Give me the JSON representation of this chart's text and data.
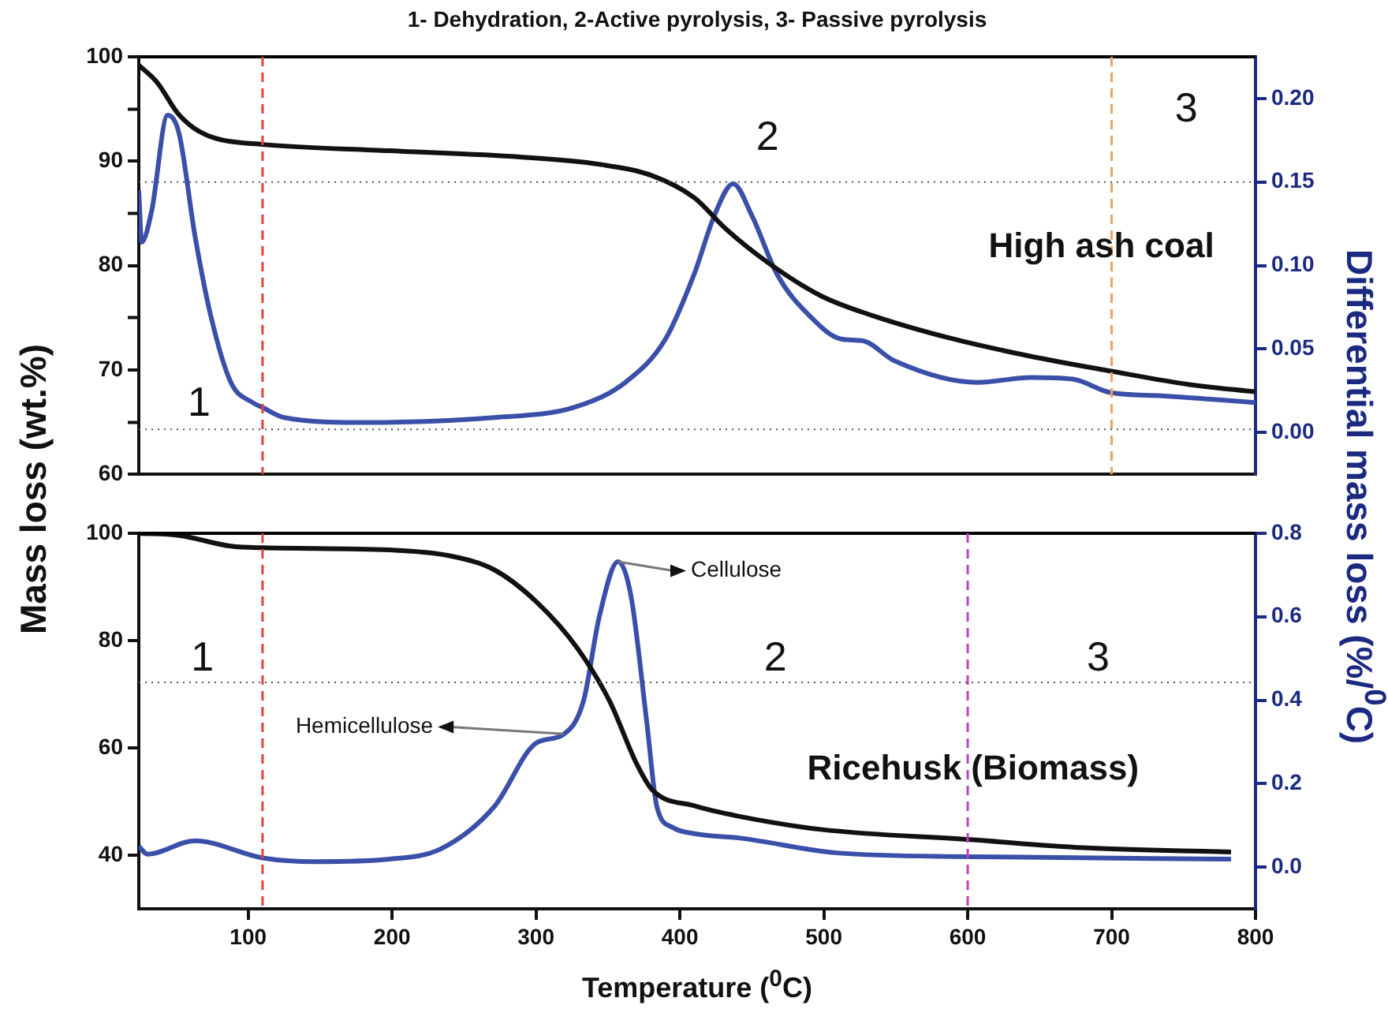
{
  "chart_data": [
    {
      "type": "line",
      "title": "1- Dehydration, 2-Active pyrolysis, 3- Passive pyrolysis",
      "subtitle": "High ash coal",
      "ylabel": "Mass loss (wt.%)",
      "y2label": "Differential mass loss (%/$^{0}$C)",
      "tick_labels": "y",
      "xlim": [
        24,
        800
      ],
      "xticks": [
        100,
        200,
        300,
        400,
        500,
        600,
        700,
        800
      ],
      "ylim": [
        60,
        100
      ],
      "yticks": [
        60,
        {
          "value": 65,
          "label": null
        },
        70,
        {
          "value": 75,
          "label": null
        },
        80,
        {
          "value": 85,
          "label": null
        },
        90,
        {
          "value": 95,
          "label": null
        },
        100
      ],
      "y2lim": [
        -0.025,
        0.225
      ],
      "y2ticks": [
        {
          "value": 0,
          "label": "0.00"
        },
        {
          "value": 0.05,
          "label": "0.05"
        },
        {
          "value": 0.1,
          "label": "0.10"
        },
        {
          "value": 0.15,
          "label": "0.15"
        },
        {
          "value": 0.2,
          "label": "0.20"
        }
      ],
      "series": [
        {
          "color": "#111111",
          "x": [
            24,
            37,
            51,
            62,
            77,
            110,
            198,
            289,
            344,
            381,
            410,
            432,
            461,
            498,
            534,
            589,
            644,
            699,
            754,
            800
          ],
          "values": [
            99.2,
            97.5,
            94.6,
            93.2,
            92.2,
            91.6,
            91.0,
            90.4,
            89.7,
            88.6,
            86.5,
            83.5,
            80.3,
            77.1,
            75.2,
            73.0,
            71.3,
            69.9,
            68.6,
            67.9
          ]
        },
        {
          "color": "#3a4fa8",
          "axis": "y2",
          "x": [
            24,
            26,
            33,
            44,
            52,
            63,
            74,
            88,
            103,
            110,
            125,
            180,
            271,
            326,
            362,
            390,
            410,
            424,
            437,
            450,
            468,
            490,
            512,
            527,
            549,
            607,
            644,
            673,
            699,
            735,
            800
          ],
          "values": [
            0.145,
            0.114,
            0.133,
            0.19,
            0.179,
            0.118,
            0.07,
            0.03,
            0.018,
            0.015,
            0.009,
            0.006,
            0.009,
            0.015,
            0.03,
            0.056,
            0.095,
            0.13,
            0.149,
            0.13,
            0.094,
            0.07,
            0.056,
            0.055,
            0.043,
            0.03,
            0.033,
            0.032,
            0.024,
            0.022,
            0.018
          ]
        }
      ],
      "ref_lines": [
        {
          "axis": "x",
          "value": 110,
          "color": "#e8413c",
          "line_style": "dashed"
        },
        {
          "axis": "x",
          "value": 700,
          "color": "#f0a060",
          "line_style": "dashed"
        },
        {
          "axis": "y",
          "value": 64.3,
          "color": "#555555",
          "line_style": "dotted"
        },
        {
          "axis": "y2",
          "value": 0.15,
          "color": "#555555",
          "line_style": "dotted"
        }
      ],
      "annotations": [
        "1",
        "2",
        "3"
      ]
    },
    {
      "type": "line",
      "subtitle": "Ricehusk (Biomass)",
      "xlabel": "Temperature ($^{0}$C)",
      "xlim": [
        24,
        800
      ],
      "xticks": [
        100,
        200,
        300,
        400,
        500,
        600,
        700,
        800
      ],
      "ylim": [
        30,
        100
      ],
      "yticks": [
        40,
        60,
        80,
        100
      ],
      "y2lim": [
        -0.1,
        0.8
      ],
      "y2ticks": [
        {
          "value": 0,
          "label": "0.0"
        },
        {
          "value": 0.2,
          "label": "0.2"
        },
        {
          "value": 0.4,
          "label": "0.4"
        },
        {
          "value": 0.6,
          "label": "0.6"
        },
        {
          "value": 0.8,
          "label": "0.8"
        }
      ],
      "series": [
        {
          "color": "#111111",
          "x": [
            24,
            52,
            88,
            110,
            198,
            242,
            271,
            300,
            329,
            351,
            370,
            381,
            410,
            440,
            498,
            602,
            680,
            783
          ],
          "values": [
            100,
            99.6,
            97.6,
            97.3,
            96.9,
            95.7,
            93.2,
            87.3,
            78.5,
            68.8,
            57.0,
            52.1,
            49.2,
            47.3,
            44.8,
            42.9,
            41.4,
            40.6
          ]
        },
        {
          "color": "#3a4fa8",
          "axis": "y2",
          "x": [
            24,
            30,
            63,
            110,
            147,
            198,
            234,
            271,
            300,
            319,
            333,
            344,
            357,
            366,
            377,
            384,
            395,
            410,
            443,
            509,
            602,
            783
          ],
          "values": [
            0.05,
            0.031,
            0.063,
            0.022,
            0.013,
            0.019,
            0.044,
            0.145,
            0.297,
            0.318,
            0.398,
            0.6,
            0.732,
            0.65,
            0.347,
            0.145,
            0.095,
            0.08,
            0.069,
            0.034,
            0.025,
            0.019
          ]
        }
      ],
      "ref_lines": [
        {
          "axis": "x",
          "value": 110,
          "color": "#e8413c",
          "line_style": "dashed"
        },
        {
          "axis": "x",
          "value": 600,
          "color": "#c040c0",
          "line_style": "dashed"
        },
        {
          "axis": "y",
          "value": 72.2,
          "color": "#555555",
          "line_style": "dotted"
        }
      ],
      "annotations": [
        "1",
        "2",
        "3",
        {
          "text": "Hemicellulose",
          "x": 319,
          "y": 62.6
        },
        {
          "text": "Cellulose",
          "x": 357,
          "y": 94.7
        }
      ]
    }
  ]
}
